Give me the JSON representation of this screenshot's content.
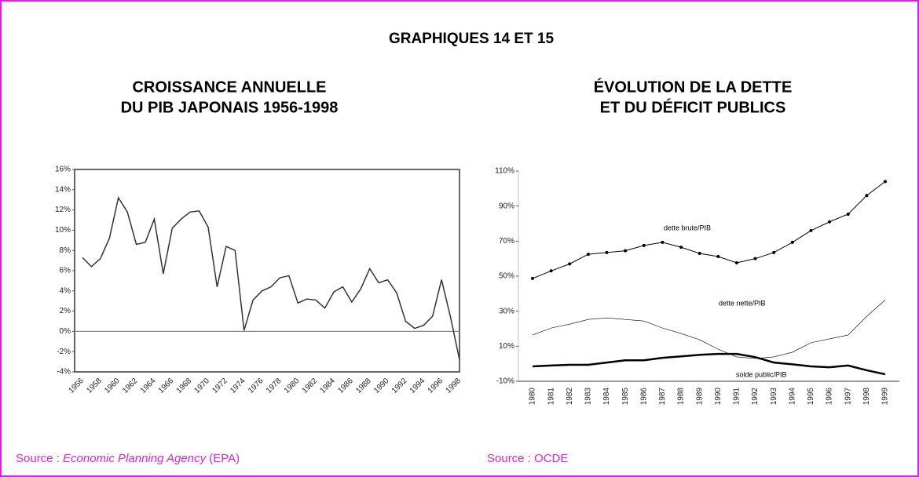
{
  "header": {
    "title": "GRAPHIQUES 14 ET 15"
  },
  "chart_data": [
    {
      "type": "line",
      "title": [
        "CROISSANCE ANNUELLE",
        "DU PIB JAPONAIS 1956-1998"
      ],
      "categories": [
        "1956",
        null,
        "1958",
        null,
        "1960",
        null,
        "1962",
        null,
        "1964",
        null,
        "1966",
        null,
        "1968",
        null,
        "1970",
        null,
        "1972",
        null,
        "1974",
        null,
        "1976",
        null,
        "1978",
        null,
        "1980",
        null,
        "1982",
        null,
        "1984",
        null,
        "1986",
        null,
        "1988",
        null,
        "1990",
        null,
        "1992",
        null,
        "1994",
        null,
        "1996",
        null,
        "1998"
      ],
      "series": [
        {
          "color": "#333333",
          "values": [
            7.3,
            6.4,
            7.2,
            9.2,
            13.2,
            11.8,
            8.6,
            8.8,
            11.1,
            5.7,
            10.2,
            11.1,
            11.8,
            11.9,
            10.3,
            4.4,
            8.4,
            8.0,
            0.1,
            3.1,
            4.0,
            4.4,
            5.3,
            5.5,
            2.8,
            3.2,
            3.1,
            2.3,
            3.9,
            4.4,
            2.9,
            4.2,
            6.2,
            4.8,
            5.1,
            3.8,
            1.0,
            0.3,
            0.6,
            1.5,
            5.1,
            1.4,
            -2.8
          ]
        }
      ],
      "ylim": [
        -4,
        16
      ],
      "yticks": [
        {
          "value": -4,
          "label": "-4%"
        },
        {
          "value": -2,
          "label": "-2%"
        },
        {
          "value": 0,
          "label": "0%"
        },
        {
          "value": 2,
          "label": "2%"
        },
        {
          "value": 4,
          "label": "4%"
        },
        {
          "value": 6,
          "label": "6%"
        },
        {
          "value": 8,
          "label": "8%"
        },
        {
          "value": 10,
          "label": "10%"
        },
        {
          "value": 12,
          "label": "12%"
        },
        {
          "value": 14,
          "label": "14%"
        },
        {
          "value": 16,
          "label": "16%"
        }
      ],
      "source": [
        "Source : ",
        "Economic Planning Agency",
        " (EPA)"
      ]
    },
    {
      "type": "line",
      "title": [
        "ÉVOLUTION DE LA DETTE",
        "ET DU DÉFICIT PUBLICS"
      ],
      "categories": [
        "1980",
        "1981",
        "1982",
        "1983",
        "1984",
        "1985",
        "1986",
        "1987",
        "1988",
        "1989",
        "1990",
        "1991",
        "1992",
        "1993",
        "1994",
        "1995",
        "1996",
        "1997",
        "1998",
        "1999"
      ],
      "series": [
        {
          "name": "dette brute/PIB",
          "color": "#000000",
          "marker": "circle",
          "values": [
            48.7,
            53,
            57,
            62.5,
            63.5,
            64.5,
            67.5,
            69.3,
            66.5,
            63,
            61.2,
            57.6,
            60,
            63.5,
            69.3,
            76,
            81,
            85.4,
            96,
            104
          ]
        },
        {
          "name": "dette nette/PIB",
          "color": "#000000",
          "values": [
            16.4,
            20.4,
            22.6,
            25.3,
            26.2,
            25.3,
            24.4,
            20.4,
            17.3,
            13.7,
            8.3,
            3.9,
            3,
            3.9,
            6.6,
            12,
            14.2,
            16.4,
            27,
            36.4
          ]
        },
        {
          "name": "solde public/PIB",
          "color": "#000000",
          "values": [
            -1.5,
            -1,
            -0.6,
            -0.6,
            0.7,
            2,
            2,
            3.4,
            4.2,
            5.1,
            5.6,
            5.6,
            3.8,
            0.7,
            -0.3,
            -1.5,
            -2,
            -1,
            -3.7,
            -6
          ]
        }
      ],
      "ylim": [
        -10,
        110
      ],
      "yticks": [
        {
          "value": -10,
          "label": "-10%"
        },
        {
          "value": 10,
          "label": "10%"
        },
        {
          "value": 30,
          "label": "30%"
        },
        {
          "value": 50,
          "label": "50%"
        },
        {
          "value": 70,
          "label": "70%"
        },
        {
          "value": 90,
          "label": "90%"
        },
        {
          "value": 110,
          "label": "110%"
        }
      ],
      "source": [
        "Source : OCDE"
      ]
    }
  ]
}
